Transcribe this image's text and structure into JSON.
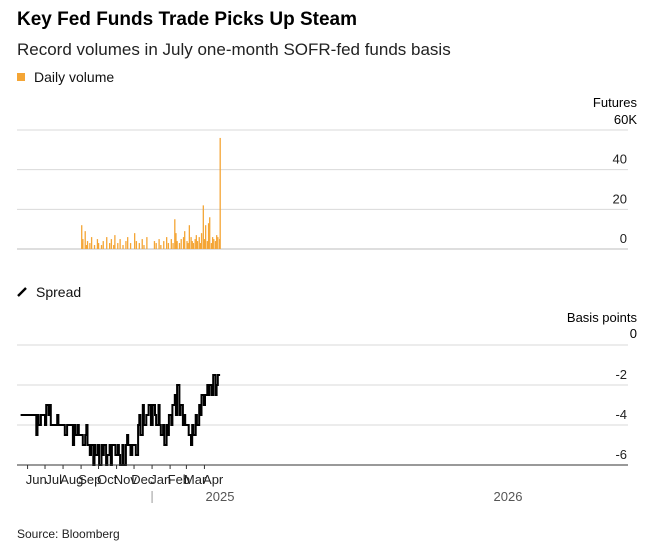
{
  "title": "Key Fed Funds Trade Picks Up Steam",
  "subtitle": "Record volumes in July one-month SOFR-fed funds basis",
  "source": "Source: Bloomberg",
  "colors": {
    "volume": "#f4a535",
    "spread": "#000000",
    "grid": "#d9d9d9"
  },
  "chart_data": [
    {
      "type": "bar",
      "legend": "Daily volume",
      "unit_line1": "Futures",
      "unit_line2": "60K",
      "ylim": [
        0,
        60
      ],
      "y_ticks": [
        0,
        20,
        40
      ],
      "y_tick_labels": [
        "0",
        "20",
        "40"
      ],
      "x_start": "2025-05-19",
      "dates": [
        "2025-09-02",
        "2025-09-03",
        "2025-09-04",
        "2025-09-08",
        "2025-09-10",
        "2025-09-12",
        "2025-09-16",
        "2025-09-19",
        "2025-09-24",
        "2025-09-29",
        "2025-10-01",
        "2025-10-06",
        "2025-10-09",
        "2025-10-15",
        "2025-10-20",
        "2025-10-23",
        "2025-10-27",
        "2025-10-29",
        "2025-11-03",
        "2025-11-07",
        "2025-11-12",
        "2025-11-17",
        "2025-11-20",
        "2025-11-25",
        "2025-12-02",
        "2025-12-05",
        "2025-12-10",
        "2025-12-15",
        "2025-12-18",
        "2025-12-23",
        "2026-01-05",
        "2026-01-08",
        "2026-01-13",
        "2026-01-16",
        "2026-01-21",
        "2026-01-26",
        "2026-01-29",
        "2026-02-03",
        "2026-02-06",
        "2026-02-09",
        "2026-02-11",
        "2026-02-13",
        "2026-02-17",
        "2026-02-20",
        "2026-02-24",
        "2026-02-26",
        "2026-03-02",
        "2026-03-04",
        "2026-03-06",
        "2026-03-09",
        "2026-03-11",
        "2026-03-13",
        "2026-03-16",
        "2026-03-18",
        "2026-03-20",
        "2026-03-23",
        "2026-03-25",
        "2026-03-27",
        "2026-03-30",
        "2026-04-01",
        "2026-04-03",
        "2026-04-06",
        "2026-04-08",
        "2026-04-10",
        "2026-04-13",
        "2026-04-15",
        "2026-04-17",
        "2026-04-20",
        "2026-04-22",
        "2026-04-24",
        "2026-04-27",
        "2026-04-28"
      ],
      "values": [
        12,
        3,
        5,
        9,
        2,
        4,
        3,
        6,
        2,
        5,
        3,
        2,
        4,
        6,
        3,
        5,
        2,
        7,
        3,
        5,
        2,
        4,
        6,
        3,
        8,
        4,
        3,
        5,
        2,
        6,
        4,
        3,
        5,
        2,
        4,
        6,
        3,
        5,
        3,
        15,
        8,
        4,
        3,
        5,
        6,
        9,
        4,
        3,
        12,
        6,
        4,
        3,
        5,
        7,
        4,
        6,
        3,
        8,
        22,
        5,
        12,
        4,
        13,
        16,
        3,
        6,
        5,
        4,
        7,
        6,
        5,
        56
      ]
    },
    {
      "type": "line",
      "legend": "Spread",
      "unit_line1": "Basis points",
      "unit_line2": "0",
      "ylim": [
        -6,
        0
      ],
      "y_ticks": [
        -2,
        -4,
        -6
      ],
      "y_tick_labels": [
        "-2",
        "-4",
        "-6"
      ],
      "x_labels": [
        "Jun",
        "Jul",
        "Aug",
        "Sep",
        "Oct",
        "Nov",
        "Dec",
        "Jan",
        "Feb",
        "Mar",
        "Apr"
      ],
      "year_labels": [
        "2025",
        "2026"
      ],
      "series": [
        {
          "x": [
            "2025-05-20",
            "2025-06-13",
            "2025-06-16",
            "2025-06-18",
            "2025-06-20",
            "2025-06-24",
            "2025-06-26",
            "2025-07-01",
            "2025-07-03",
            "2025-07-07",
            "2025-07-09",
            "2025-07-11",
            "2025-07-14",
            "2025-07-18",
            "2025-07-22",
            "2025-07-24",
            "2025-07-28",
            "2025-08-01",
            "2025-08-04",
            "2025-08-08",
            "2025-08-12",
            "2025-08-14",
            "2025-08-18",
            "2025-08-20",
            "2025-08-22",
            "2025-08-26",
            "2025-08-28",
            "2025-09-02",
            "2025-09-04",
            "2025-09-08",
            "2025-09-10",
            "2025-09-12",
            "2025-09-16",
            "2025-09-18",
            "2025-09-22",
            "2025-09-24",
            "2025-09-26",
            "2025-09-30",
            "2025-10-02",
            "2025-10-06",
            "2025-10-08",
            "2025-10-10",
            "2025-10-14",
            "2025-10-16",
            "2025-10-20",
            "2025-10-22",
            "2025-10-24",
            "2025-10-28",
            "2025-10-30",
            "2025-11-03",
            "2025-11-05",
            "2025-11-07",
            "2025-11-11",
            "2025-11-13",
            "2025-11-17",
            "2025-11-19",
            "2025-11-21",
            "2025-11-25",
            "2025-11-28",
            "2025-12-02",
            "2025-12-04",
            "2025-12-08",
            "2025-12-10",
            "2025-12-12",
            "2025-12-16",
            "2025-12-18",
            "2025-12-22",
            "2025-12-26",
            "2025-12-30",
            "2026-01-02",
            "2026-01-06",
            "2026-01-08",
            "2026-01-12",
            "2026-01-14",
            "2026-01-16",
            "2026-01-20",
            "2026-01-22",
            "2026-01-26",
            "2026-01-28",
            "2026-01-30",
            "2026-02-03",
            "2026-02-05",
            "2026-02-09",
            "2026-02-11",
            "2026-02-13",
            "2026-02-17",
            "2026-02-19",
            "2026-02-23",
            "2026-02-25",
            "2026-02-27",
            "2026-03-03",
            "2026-03-05",
            "2026-03-09",
            "2026-03-11",
            "2026-03-13",
            "2026-03-17",
            "2026-03-19",
            "2026-03-23",
            "2026-03-25",
            "2026-03-27",
            "2026-03-31",
            "2026-04-02",
            "2026-04-06",
            "2026-04-08",
            "2026-04-10",
            "2026-04-14",
            "2026-04-16",
            "2026-04-20",
            "2026-04-22",
            "2026-04-24",
            "2026-04-28"
          ],
          "y": [
            -3.5,
            -3.5,
            -4.5,
            -3.5,
            -4.0,
            -3.5,
            -3.5,
            -4.0,
            -3.0,
            -3.5,
            -3.0,
            -4.0,
            -4.0,
            -4.0,
            -3.5,
            -4.0,
            -4.0,
            -4.0,
            -4.5,
            -4.0,
            -4.0,
            -4.0,
            -5.0,
            -4.0,
            -4.5,
            -4.0,
            -4.5,
            -4.5,
            -5.0,
            -4.5,
            -4.0,
            -5.0,
            -5.5,
            -5.0,
            -6.0,
            -5.0,
            -5.5,
            -5.0,
            -6.0,
            -5.0,
            -5.5,
            -5.0,
            -6.0,
            -5.5,
            -5.0,
            -6.0,
            -5.0,
            -5.0,
            -5.5,
            -5.0,
            -5.5,
            -6.0,
            -5.0,
            -6.0,
            -5.0,
            -4.5,
            -5.0,
            -5.5,
            -5.0,
            -5.0,
            -5.5,
            -4.0,
            -3.5,
            -4.5,
            -3.0,
            -4.0,
            -3.5,
            -3.0,
            -4.0,
            -3.0,
            -3.5,
            -4.0,
            -3.0,
            -4.0,
            -4.5,
            -4.0,
            -5.0,
            -4.0,
            -4.5,
            -3.5,
            -4.0,
            -3.0,
            -2.5,
            -3.5,
            -2.0,
            -3.5,
            -3.0,
            -4.0,
            -3.5,
            -4.0,
            -4.0,
            -4.5,
            -5.0,
            -4.0,
            -4.5,
            -3.5,
            -4.0,
            -3.0,
            -3.5,
            -2.5,
            -3.0,
            -2.5,
            -2.0,
            -2.5,
            -2.0,
            -2.5,
            -1.5,
            -2.5,
            -2.0,
            -1.5,
            -1.5
          ]
        }
      ]
    }
  ]
}
